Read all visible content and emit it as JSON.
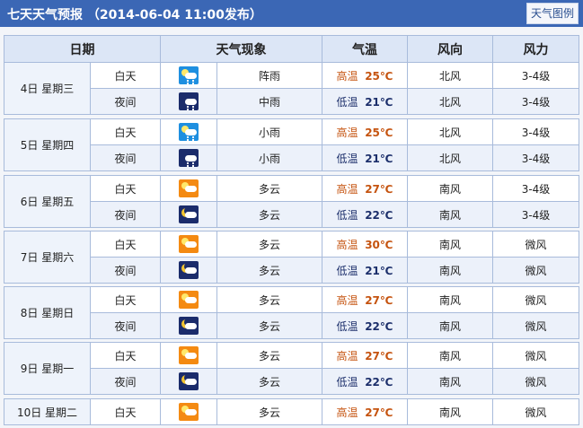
{
  "header": {
    "title": "七天天气预报 （2014-06-04 11:00发布）",
    "legend_button": "天气图例"
  },
  "columns": [
    "日期",
    "天气现象",
    "气温",
    "风向",
    "风力"
  ],
  "days": [
    {
      "date": "4日 星期三",
      "rows": [
        {
          "period": "白天",
          "icon": "shower-rain-day-icon",
          "weather": "阵雨",
          "temp_label": "高温",
          "temp": "25℃",
          "wind_dir": "北风",
          "wind_power": "3-4级"
        },
        {
          "period": "夜间",
          "icon": "moderate-rain-night-icon",
          "weather": "中雨",
          "temp_label": "低温",
          "temp": "21℃",
          "wind_dir": "北风",
          "wind_power": "3-4级"
        }
      ]
    },
    {
      "date": "5日 星期四",
      "rows": [
        {
          "period": "白天",
          "icon": "light-rain-day-icon",
          "weather": "小雨",
          "temp_label": "高温",
          "temp": "25℃",
          "wind_dir": "北风",
          "wind_power": "3-4级"
        },
        {
          "period": "夜间",
          "icon": "light-rain-night-icon",
          "weather": "小雨",
          "temp_label": "低温",
          "temp": "21℃",
          "wind_dir": "北风",
          "wind_power": "3-4级"
        }
      ]
    },
    {
      "date": "6日 星期五",
      "rows": [
        {
          "period": "白天",
          "icon": "cloudy-day-icon",
          "weather": "多云",
          "temp_label": "高温",
          "temp": "27℃",
          "wind_dir": "南风",
          "wind_power": "3-4级"
        },
        {
          "period": "夜间",
          "icon": "cloudy-night-icon",
          "weather": "多云",
          "temp_label": "低温",
          "temp": "22℃",
          "wind_dir": "南风",
          "wind_power": "3-4级"
        }
      ]
    },
    {
      "date": "7日 星期六",
      "rows": [
        {
          "period": "白天",
          "icon": "cloudy-day-icon",
          "weather": "多云",
          "temp_label": "高温",
          "temp": "30℃",
          "wind_dir": "南风",
          "wind_power": "微风"
        },
        {
          "period": "夜间",
          "icon": "cloudy-night-icon",
          "weather": "多云",
          "temp_label": "低温",
          "temp": "21℃",
          "wind_dir": "南风",
          "wind_power": "微风"
        }
      ]
    },
    {
      "date": "8日 星期日",
      "rows": [
        {
          "period": "白天",
          "icon": "cloudy-day-icon",
          "weather": "多云",
          "temp_label": "高温",
          "temp": "27℃",
          "wind_dir": "南风",
          "wind_power": "微风"
        },
        {
          "period": "夜间",
          "icon": "cloudy-night-icon",
          "weather": "多云",
          "temp_label": "低温",
          "temp": "22℃",
          "wind_dir": "南风",
          "wind_power": "微风"
        }
      ]
    },
    {
      "date": "9日 星期一",
      "rows": [
        {
          "period": "白天",
          "icon": "cloudy-day-icon",
          "weather": "多云",
          "temp_label": "高温",
          "temp": "27℃",
          "wind_dir": "南风",
          "wind_power": "微风"
        },
        {
          "period": "夜间",
          "icon": "cloudy-night-icon",
          "weather": "多云",
          "temp_label": "低温",
          "temp": "22℃",
          "wind_dir": "南风",
          "wind_power": "微风"
        }
      ]
    },
    {
      "date": "10日 星期二",
      "rows": [
        {
          "period": "白天",
          "icon": "cloudy-day-icon",
          "weather": "多云",
          "temp_label": "高温",
          "temp": "27℃",
          "wind_dir": "南风",
          "wind_power": "微风"
        }
      ]
    }
  ],
  "colors": {
    "header_bar": "#3b67b5",
    "high_temp": "#c5530f",
    "low_temp": "#1c2f6b"
  }
}
